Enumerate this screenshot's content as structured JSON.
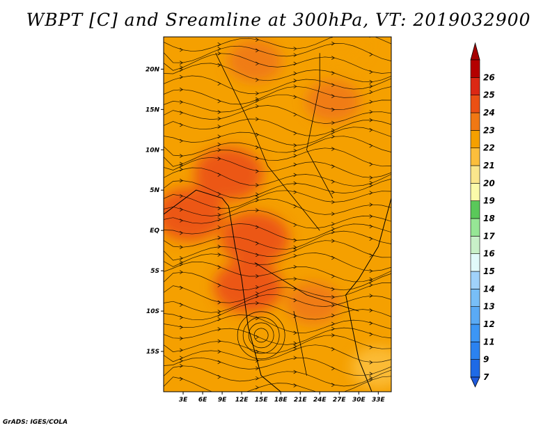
{
  "title": "WBPT [C] and Sreamline at 300hPa, VT: 2019032900",
  "footer": "GrADS: IGES/COLA",
  "chart_data": {
    "type": "heatmap",
    "title": "WBPT [C] and Sreamline at 300hPa, VT: 2019032900",
    "xlim": [
      0,
      35
    ],
    "ylim": [
      -20,
      24
    ],
    "xticks": [
      {
        "value": 3,
        "label": "3E"
      },
      {
        "value": 6,
        "label": "6E"
      },
      {
        "value": 9,
        "label": "9E"
      },
      {
        "value": 12,
        "label": "12E"
      },
      {
        "value": 15,
        "label": "15E"
      },
      {
        "value": 18,
        "label": "18E"
      },
      {
        "value": 21,
        "label": "21E"
      },
      {
        "value": 24,
        "label": "24E"
      },
      {
        "value": 27,
        "label": "27E"
      },
      {
        "value": 30,
        "label": "30E"
      },
      {
        "value": 33,
        "label": "33E"
      }
    ],
    "yticks": [
      {
        "value": 20,
        "label": "20N"
      },
      {
        "value": 15,
        "label": "15N"
      },
      {
        "value": 10,
        "label": "10N"
      },
      {
        "value": 5,
        "label": "5N"
      },
      {
        "value": 0,
        "label": "EQ"
      },
      {
        "value": -5,
        "label": "5S"
      },
      {
        "value": -10,
        "label": "10S"
      },
      {
        "value": -15,
        "label": "15S"
      }
    ],
    "colorbar": {
      "labels": [
        "7",
        "9",
        "11",
        "12",
        "13",
        "14",
        "15",
        "16",
        "17",
        "18",
        "19",
        "20",
        "21",
        "22",
        "23",
        "24",
        "25",
        "26"
      ],
      "colors": [
        "#1e6ae6",
        "#2b82f0",
        "#3c96f5",
        "#5aaaf5",
        "#78bef7",
        "#a0d2fa",
        "#e1fafa",
        "#c8f0c8",
        "#96e695",
        "#5ac85a",
        "#fafaaa",
        "#fae68c",
        "#fcbe3c",
        "#f5a000",
        "#f07814",
        "#eb5014",
        "#dc2814",
        "#b40000"
      ],
      "under_color": "#1e5adc",
      "over_color": "#a50000"
    },
    "field": {
      "dominant_value_range": [
        22,
        24
      ],
      "patches": [
        {
          "lon": 4,
          "lat": 2,
          "value": 24
        },
        {
          "lon": 10,
          "lat": 7,
          "value": 24
        },
        {
          "lon": 14,
          "lat": -1,
          "value": 24
        },
        {
          "lon": 13,
          "lat": -7,
          "value": 24
        },
        {
          "lon": 14,
          "lat": 21,
          "value": 23
        },
        {
          "lon": 26,
          "lat": 16,
          "value": 23
        },
        {
          "lon": 23,
          "lat": -9,
          "value": 23
        },
        {
          "lon": 33,
          "lat": -17,
          "value": 21
        },
        {
          "lon": 27,
          "lat": 23,
          "value": 22
        }
      ]
    }
  }
}
